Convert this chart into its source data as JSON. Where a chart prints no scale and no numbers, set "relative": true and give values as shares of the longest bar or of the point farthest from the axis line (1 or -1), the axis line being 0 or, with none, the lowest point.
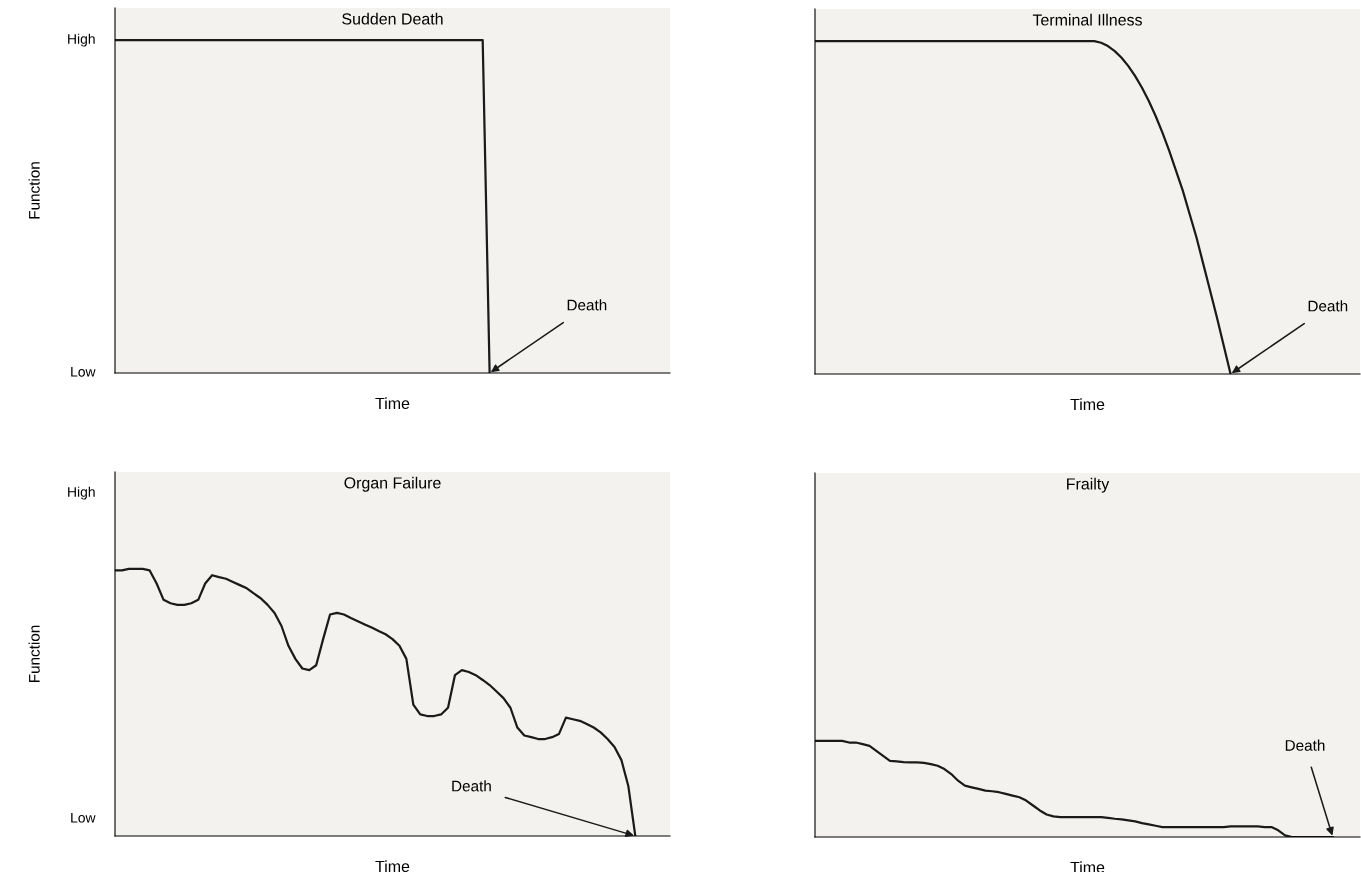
{
  "chart_data": [
    {
      "type": "line",
      "relative": true,
      "title": "Sudden Death",
      "xlabel": "Time",
      "ylabel": "Function",
      "annotations": [
        "High",
        "Low",
        "Death"
      ],
      "categories": [
        null,
        null,
        null,
        null,
        null,
        null,
        null,
        null,
        null,
        null,
        null,
        null,
        null,
        null,
        null,
        null,
        null,
        null,
        null,
        null,
        null,
        null,
        null,
        null,
        null,
        null,
        null,
        null,
        null,
        null,
        null,
        null,
        null,
        null,
        null,
        null,
        null,
        null,
        null,
        null,
        null,
        null,
        null,
        null,
        null,
        null,
        null,
        null,
        null,
        null,
        null,
        null,
        null,
        null,
        null,
        null,
        null,
        null,
        null,
        null,
        null,
        null,
        null,
        null,
        null,
        null,
        null,
        null,
        null,
        null,
        null,
        null,
        null,
        null,
        null,
        null,
        null,
        null,
        null,
        null,
        null
      ],
      "series": [
        {
          "color": "#1a1a1a",
          "values": [
            1,
            1,
            1,
            1,
            1,
            1,
            1,
            1,
            1,
            1,
            1,
            1,
            1,
            1,
            1,
            1,
            1,
            1,
            1,
            1,
            1,
            1,
            1,
            1,
            1,
            1,
            1,
            1,
            1,
            1,
            1,
            1,
            1,
            1,
            1,
            1,
            1,
            1,
            1,
            1,
            1,
            1,
            1,
            1,
            1,
            1,
            1,
            1,
            1,
            1,
            1,
            1,
            1,
            1,
            0,
            null,
            null,
            null,
            null,
            null,
            null,
            null,
            null,
            null,
            null,
            null,
            null,
            null,
            null,
            null,
            null,
            null,
            null,
            null,
            null,
            null,
            null,
            null,
            null,
            null,
            null
          ]
        }
      ]
    },
    {
      "type": "line",
      "relative": true,
      "title": "Terminal Illness",
      "xlabel": "Time",
      "annotations": [
        "Death"
      ],
      "categories": [
        null,
        null,
        null,
        null,
        null,
        null,
        null,
        null,
        null,
        null,
        null,
        null,
        null,
        null,
        null,
        null,
        null,
        null,
        null,
        null,
        null,
        null,
        null,
        null,
        null,
        null,
        null,
        null,
        null,
        null,
        null,
        null,
        null,
        null,
        null,
        null,
        null,
        null,
        null,
        null,
        null,
        null,
        null,
        null,
        null,
        null,
        null,
        null,
        null,
        null,
        null,
        null,
        null,
        null,
        null,
        null,
        null,
        null,
        null,
        null,
        null,
        null,
        null,
        null,
        null,
        null,
        null,
        null,
        null,
        null,
        null,
        null,
        null,
        null,
        null,
        null,
        null,
        null,
        null,
        null,
        null
      ],
      "series": [
        {
          "color": "#1a1a1a",
          "values": [
            1,
            1,
            1,
            1,
            1,
            1,
            1,
            1,
            1,
            1,
            1,
            1,
            1,
            1,
            1,
            1,
            1,
            1,
            1,
            1,
            1,
            1,
            1,
            1,
            1,
            1,
            1,
            1,
            1,
            1,
            1,
            1,
            1,
            1,
            1,
            1,
            1,
            1,
            1,
            1,
            1,
            1,
            0.995,
            0.985,
            0.97,
            0.95,
            0.925,
            0.895,
            0.86,
            0.82,
            0.775,
            0.725,
            0.67,
            0.61,
            0.55,
            0.48,
            0.41,
            0.33,
            0.25,
            0.17,
            0.085,
            0,
            null,
            null,
            null,
            null,
            null,
            null,
            null,
            null,
            null,
            null,
            null,
            null,
            null,
            null,
            null,
            null,
            null,
            null,
            null
          ]
        }
      ]
    },
    {
      "type": "line",
      "relative": true,
      "title": "Organ Failure",
      "xlabel": "Time",
      "ylabel": "Function",
      "annotations": [
        "High",
        "Low",
        "Death"
      ],
      "categories": [
        null,
        null,
        null,
        null,
        null,
        null,
        null,
        null,
        null,
        null,
        null,
        null,
        null,
        null,
        null,
        null,
        null,
        null,
        null,
        null,
        null,
        null,
        null,
        null,
        null,
        null,
        null,
        null,
        null,
        null,
        null,
        null,
        null,
        null,
        null,
        null,
        null,
        null,
        null,
        null,
        null,
        null,
        null,
        null,
        null,
        null,
        null,
        null,
        null,
        null,
        null,
        null,
        null,
        null,
        null,
        null,
        null,
        null,
        null,
        null,
        null,
        null,
        null,
        null,
        null,
        null,
        null,
        null,
        null,
        null,
        null,
        null,
        null,
        null,
        null,
        null,
        null,
        null,
        null,
        null,
        null
      ],
      "series": [
        {
          "color": "#1a1a1a",
          "values": [
            0.994,
            0.994,
            1,
            1,
            1,
            0.994,
            0.945,
            0.884,
            0.871,
            0.865,
            0.865,
            0.871,
            0.884,
            0.945,
            0.976,
            0.969,
            0.963,
            0.951,
            0.939,
            0.927,
            0.908,
            0.89,
            0.865,
            0.835,
            0.786,
            0.712,
            0.663,
            0.627,
            0.621,
            0.639,
            0.737,
            0.829,
            0.835,
            0.829,
            0.816,
            0.804,
            0.792,
            0.78,
            0.767,
            0.755,
            0.737,
            0.712,
            0.663,
            0.492,
            0.455,
            0.449,
            0.449,
            0.455,
            0.48,
            0.602,
            0.621,
            0.614,
            0.602,
            0.584,
            0.565,
            0.541,
            0.516,
            0.48,
            0.406,
            0.376,
            0.37,
            0.363,
            0.363,
            0.37,
            0.382,
            0.443,
            0.437,
            0.431,
            0.419,
            0.406,
            0.388,
            0.363,
            0.333,
            0.284,
            0.186,
            0,
            null,
            null,
            null,
            null,
            null
          ]
        }
      ]
    },
    {
      "type": "line",
      "relative": true,
      "title": "Frailty",
      "xlabel": "Time",
      "annotations": [
        "Death"
      ],
      "categories": [
        null,
        null,
        null,
        null,
        null,
        null,
        null,
        null,
        null,
        null,
        null,
        null,
        null,
        null,
        null,
        null,
        null,
        null,
        null,
        null,
        null,
        null,
        null,
        null,
        null,
        null,
        null,
        null,
        null,
        null,
        null,
        null,
        null,
        null,
        null,
        null,
        null,
        null,
        null,
        null,
        null,
        null,
        null,
        null,
        null,
        null,
        null,
        null,
        null,
        null,
        null,
        null,
        null,
        null,
        null,
        null,
        null,
        null,
        null,
        null,
        null,
        null,
        null,
        null,
        null,
        null,
        null,
        null,
        null,
        null,
        null,
        null,
        null,
        null,
        null,
        null,
        null,
        null,
        null,
        null,
        null
      ],
      "series": [
        {
          "color": "#1a1a1a",
          "values": [
            1,
            1,
            1,
            1,
            1,
            0.983,
            0.983,
            0.966,
            0.948,
            0.897,
            0.845,
            0.793,
            0.786,
            0.779,
            0.776,
            0.776,
            0.772,
            0.759,
            0.741,
            0.707,
            0.655,
            0.586,
            0.534,
            0.517,
            0.5,
            0.483,
            0.476,
            0.466,
            0.448,
            0.431,
            0.414,
            0.379,
            0.328,
            0.276,
            0.234,
            0.214,
            0.207,
            0.207,
            0.207,
            0.207,
            0.207,
            0.207,
            0.207,
            0.2,
            0.19,
            0.183,
            0.172,
            0.162,
            0.145,
            0.131,
            0.117,
            0.103,
            0.103,
            0.103,
            0.103,
            0.103,
            0.103,
            0.103,
            0.103,
            0.103,
            0.103,
            0.11,
            0.11,
            0.11,
            0.11,
            0.11,
            0.103,
            0.103,
            0.069,
            0.017,
            0,
            0,
            0,
            0,
            0,
            0,
            0,
            null,
            null,
            null,
            null
          ]
        }
      ]
    }
  ]
}
